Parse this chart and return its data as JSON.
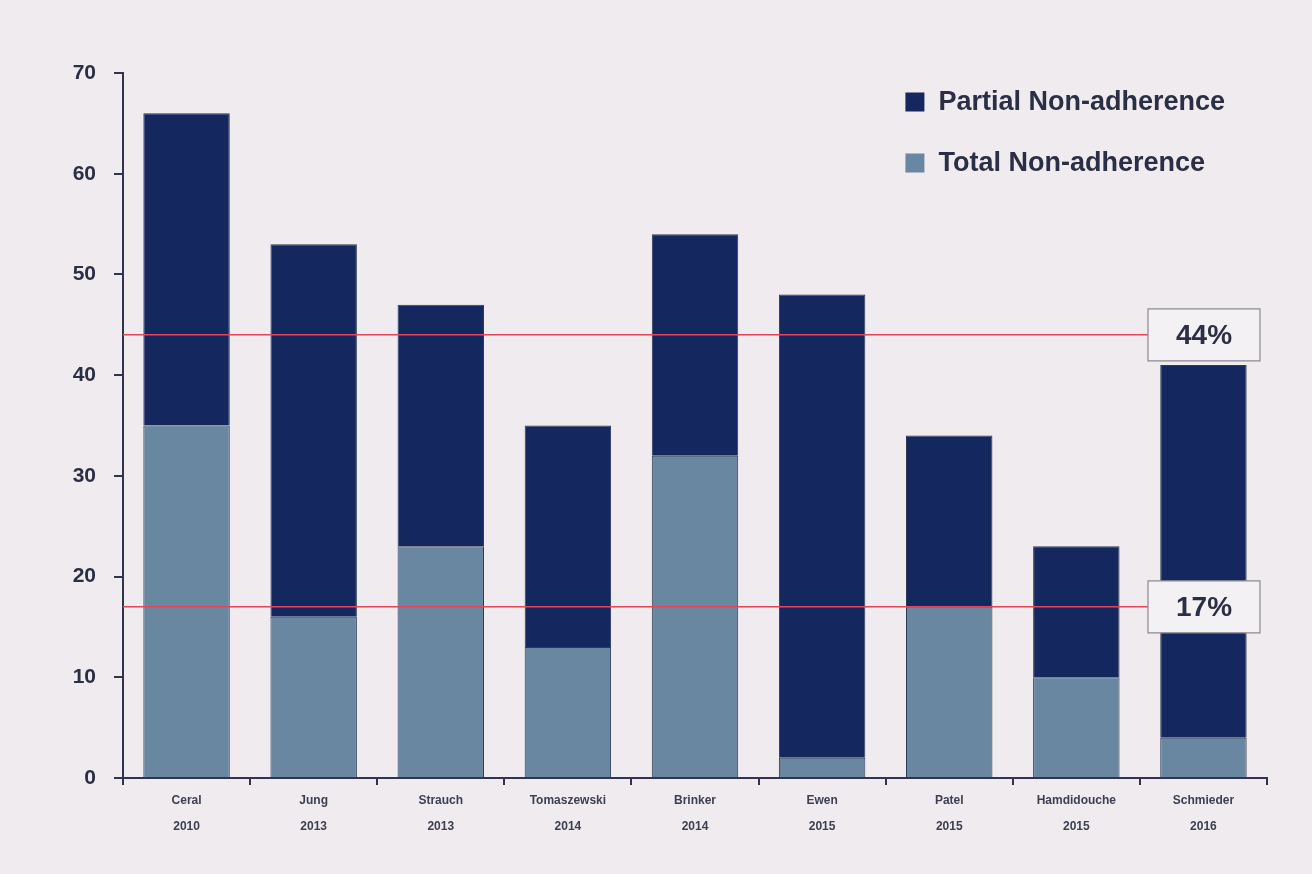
{
  "chart_data": {
    "type": "bar",
    "stacked": true,
    "categories": [
      "Ceral\n2010",
      "Jung\n2013",
      "Strauch\n2013",
      "Tomaszewski\n2014",
      "Brinker\n2014",
      "Ewen\n2015",
      "Patel\n2015",
      "Hamdidouche\n2015",
      "Schmieder\n2016"
    ],
    "series": [
      {
        "name": "Total Non-adherence",
        "color": "#6a87a2",
        "values": [
          35,
          16,
          23,
          13,
          32,
          2,
          17,
          10,
          4
        ]
      },
      {
        "name": "Partial Non-adherence",
        "color": "#14275e",
        "values": [
          31,
          37,
          24,
          22,
          22,
          46,
          17,
          13,
          37
        ]
      }
    ],
    "ylim": [
      0,
      70
    ],
    "yticks": [
      0,
      10,
      20,
      30,
      40,
      50,
      60,
      70
    ],
    "grid": false,
    "legend": "top right",
    "ref_lines": [
      {
        "axis": "y",
        "value": 44,
        "label": "44%",
        "color": "#e8464e"
      },
      {
        "axis": "y",
        "value": 17,
        "label": "17%",
        "color": "#e8464e"
      }
    ]
  }
}
